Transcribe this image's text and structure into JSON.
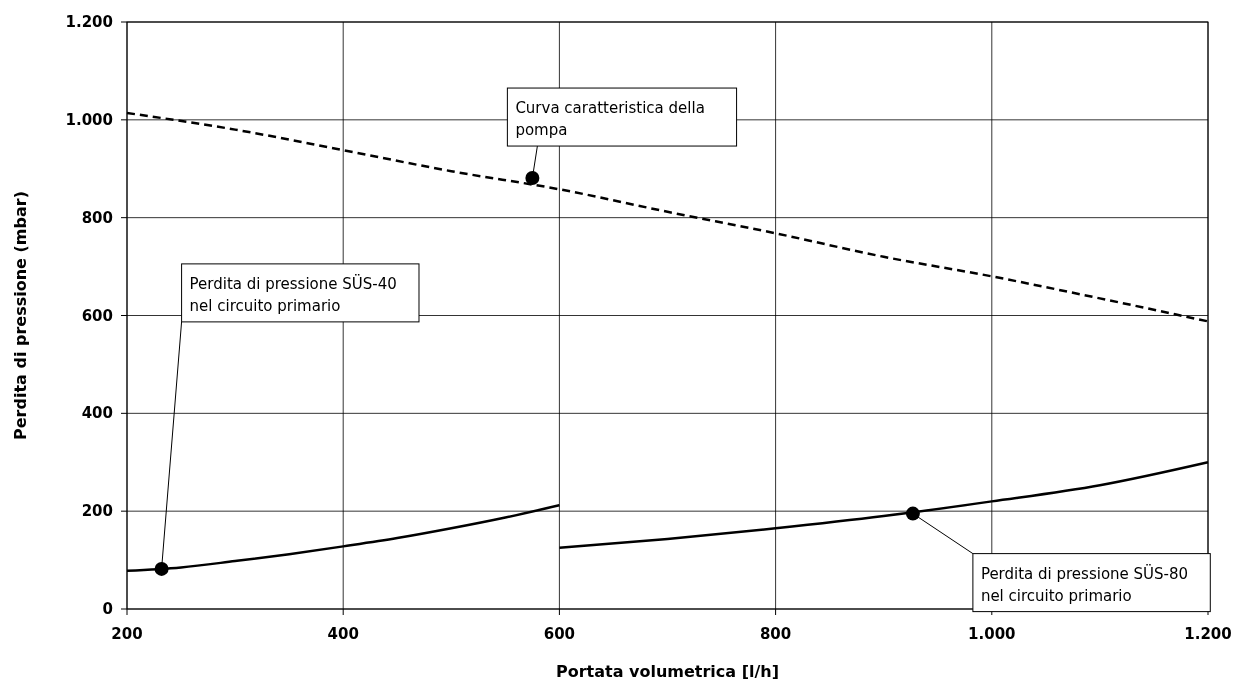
{
  "chart_data": {
    "type": "line",
    "xlabel": "Portata volumetrica [l/h]",
    "ylabel": "Perdita di pressione (mbar)",
    "xlim": [
      200,
      1200
    ],
    "xticks": [
      200,
      400,
      600,
      800,
      {
        "value": 1000,
        "label": "1.000"
      },
      {
        "value": 1200,
        "label": "1.200"
      }
    ],
    "ylim": [
      0,
      1200
    ],
    "yticks": [
      0,
      200,
      400,
      600,
      800,
      {
        "value": 1000,
        "label": "1.000"
      },
      {
        "value": 1200,
        "label": "1.200"
      }
    ],
    "grid": true,
    "marker": "none",
    "series": [
      {
        "color": "#000000",
        "line_style": "dashed",
        "x": [
          200,
          300,
          400,
          500,
          600,
          700,
          800,
          900,
          1000,
          1100,
          1200
        ],
        "values": [
          1014,
          980,
          938,
          895,
          858,
          812,
          768,
          720,
          680,
          635,
          588
        ]
      },
      {
        "color": "#000000",
        "line_style": "solid",
        "x": [
          200,
          250,
          300,
          350,
          400,
          450,
          500,
          550,
          600
        ],
        "values": [
          78,
          85,
          98,
          112,
          128,
          145,
          165,
          187,
          212
        ]
      },
      {
        "color": "#000000",
        "line_style": "solid",
        "x": [
          600,
          700,
          800,
          900,
          1000,
          1100,
          1200
        ],
        "values": [
          125,
          143,
          165,
          190,
          220,
          253,
          300
        ]
      }
    ],
    "annotations": [
      {
        "text": "Perdita di pressione SÜS-40 nel circuito primario",
        "x": 232,
        "y": 82
      },
      {
        "text": "Curva caratteristica della pompa",
        "x": 575,
        "y": 881
      },
      {
        "text": "Perdita di pressione SÜS-80 nel circuito primario",
        "x": 927,
        "y": 195
      }
    ]
  }
}
